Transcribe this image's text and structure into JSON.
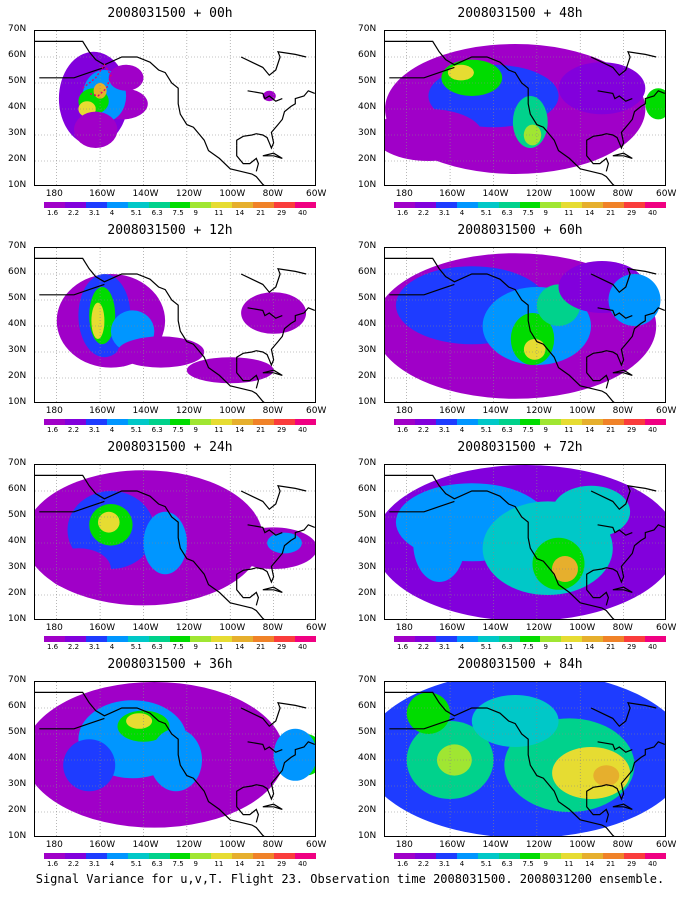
{
  "caption": "Signal Variance for u,v,T. Flight 23. Observation time 2008031500. 2008031200 ensemble.",
  "chart_data": {
    "type": "heatmap",
    "lat_ticks": [
      "70N",
      "60N",
      "50N",
      "40N",
      "30N",
      "20N",
      "10N"
    ],
    "lon_ticks": [
      "180",
      "160W",
      "140W",
      "120W",
      "100W",
      "80W",
      "60W"
    ],
    "colorbar_levels": [
      "1.6",
      "2.2",
      "3.1",
      "4",
      "5.1",
      "6.3",
      "7.5",
      "9",
      "11",
      "14",
      "21",
      "29",
      "40"
    ],
    "colorbar_colors": [
      "#a000c8",
      "#8200dc",
      "#1e3cff",
      "#0096ff",
      "#00c8c8",
      "#00d28c",
      "#00dc00",
      "#a0e632",
      "#e6dc32",
      "#e6af2d",
      "#f08228",
      "#fa3c3c",
      "#f00082"
    ],
    "panels": [
      {
        "title": "2008031500 + 00h",
        "blobs": [
          [
            -163,
            44,
            16,
            18,
            1
          ],
          [
            -150,
            42,
            12,
            6,
            0
          ],
          [
            -158,
            45,
            10,
            10,
            3
          ],
          [
            -163,
            43,
            7,
            5,
            6
          ],
          [
            -166,
            40,
            4,
            3,
            8
          ],
          [
            -160,
            47,
            3,
            3,
            9
          ],
          [
            -162,
            32,
            10,
            7,
            0
          ],
          [
            -148,
            52,
            8,
            5,
            0
          ],
          [
            -82,
            45,
            3,
            2,
            0
          ]
        ]
      },
      {
        "title": "2008031500 + 48h",
        "blobs": [
          [
            -130,
            40,
            60,
            25,
            0
          ],
          [
            -140,
            45,
            30,
            12,
            2
          ],
          [
            -150,
            52,
            14,
            7,
            6
          ],
          [
            -155,
            54,
            6,
            3,
            8
          ],
          [
            -123,
            35,
            8,
            10,
            5
          ],
          [
            -122,
            30,
            4,
            4,
            7
          ],
          [
            -90,
            48,
            20,
            10,
            1
          ],
          [
            -64,
            42,
            6,
            6,
            6
          ],
          [
            -170,
            30,
            25,
            10,
            0
          ]
        ]
      },
      {
        "title": "2008031500 + 12h",
        "blobs": [
          [
            -155,
            42,
            25,
            18,
            0
          ],
          [
            -158,
            44,
            12,
            16,
            2
          ],
          [
            -159,
            44,
            6,
            11,
            6
          ],
          [
            -161,
            42,
            3,
            7,
            8
          ],
          [
            -145,
            38,
            10,
            8,
            3
          ],
          [
            -132,
            30,
            20,
            6,
            0
          ],
          [
            -80,
            45,
            15,
            8,
            0
          ],
          [
            -100,
            23,
            20,
            5,
            0
          ]
        ]
      },
      {
        "title": "2008031500 + 60h",
        "blobs": [
          [
            -130,
            40,
            65,
            28,
            0
          ],
          [
            -150,
            48,
            35,
            15,
            2
          ],
          [
            -120,
            40,
            25,
            15,
            3
          ],
          [
            -122,
            35,
            10,
            10,
            6
          ],
          [
            -121,
            31,
            5,
            4,
            8
          ],
          [
            -110,
            48,
            10,
            8,
            5
          ],
          [
            -90,
            55,
            20,
            10,
            1
          ],
          [
            -75,
            50,
            12,
            10,
            3
          ]
        ]
      },
      {
        "title": "2008031500 + 24h",
        "blobs": [
          [
            -140,
            42,
            55,
            26,
            0
          ],
          [
            -155,
            45,
            20,
            15,
            2
          ],
          [
            -155,
            47,
            10,
            8,
            6
          ],
          [
            -156,
            48,
            5,
            4,
            8
          ],
          [
            -130,
            40,
            10,
            12,
            3
          ],
          [
            -80,
            38,
            20,
            8,
            0
          ],
          [
            -75,
            40,
            8,
            4,
            3
          ],
          [
            -170,
            30,
            15,
            8,
            0
          ]
        ]
      },
      {
        "title": "2008031500 + 72h",
        "blobs": [
          [
            -125,
            40,
            70,
            30,
            1
          ],
          [
            -150,
            48,
            35,
            15,
            3
          ],
          [
            -115,
            38,
            30,
            18,
            4
          ],
          [
            -110,
            32,
            12,
            10,
            6
          ],
          [
            -107,
            30,
            6,
            5,
            9
          ],
          [
            -95,
            52,
            18,
            10,
            4
          ],
          [
            -165,
            40,
            12,
            15,
            3
          ]
        ]
      },
      {
        "title": "2008031500 + 36h",
        "blobs": [
          [
            -135,
            42,
            60,
            28,
            0
          ],
          [
            -145,
            48,
            25,
            15,
            3
          ],
          [
            -140,
            53,
            12,
            6,
            6
          ],
          [
            -142,
            55,
            6,
            3,
            8
          ],
          [
            -125,
            40,
            12,
            12,
            3
          ],
          [
            -165,
            38,
            12,
            10,
            2
          ],
          [
            -65,
            42,
            8,
            8,
            6
          ],
          [
            -70,
            42,
            10,
            10,
            3
          ]
        ]
      },
      {
        "title": "2008031500 + 84h",
        "blobs": [
          [
            -125,
            42,
            75,
            32,
            2
          ],
          [
            -160,
            40,
            20,
            15,
            5
          ],
          [
            -158,
            40,
            8,
            6,
            7
          ],
          [
            -105,
            38,
            30,
            18,
            5
          ],
          [
            -95,
            35,
            18,
            10,
            8
          ],
          [
            -88,
            34,
            6,
            4,
            9
          ],
          [
            -170,
            58,
            10,
            8,
            6
          ],
          [
            -130,
            55,
            20,
            10,
            4
          ]
        ]
      }
    ]
  }
}
